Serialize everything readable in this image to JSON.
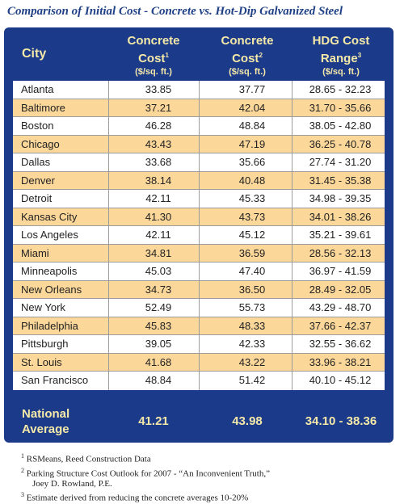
{
  "title": "Comparison of Initial Cost - Concrete vs. Hot-Dip Galvanized Steel",
  "header": {
    "city": "City",
    "col1_line1": "Concrete",
    "col1_line2": "Cost",
    "col1_sup": "1",
    "col1_unit": "($/sq. ft.)",
    "col2_line1": "Concrete",
    "col2_line2": "Cost",
    "col2_sup": "2",
    "col2_unit": "($/sq. ft.)",
    "col3_line1": "HDG Cost",
    "col3_line2": "Range",
    "col3_sup": "3",
    "col3_unit": "($/sq. ft.)"
  },
  "rows": [
    {
      "city": "Atlanta",
      "c1": "33.85",
      "c2": "37.77",
      "hdg": "28.65 - 32.23"
    },
    {
      "city": "Baltimore",
      "c1": "37.21",
      "c2": "42.04",
      "hdg": "31.70 - 35.66"
    },
    {
      "city": "Boston",
      "c1": "46.28",
      "c2": "48.84",
      "hdg": "38.05 - 42.80"
    },
    {
      "city": "Chicago",
      "c1": "43.43",
      "c2": "47.19",
      "hdg": "36.25 - 40.78"
    },
    {
      "city": "Dallas",
      "c1": "33.68",
      "c2": "35.66",
      "hdg": "27.74 - 31.20"
    },
    {
      "city": "Denver",
      "c1": "38.14",
      "c2": "40.48",
      "hdg": "31.45 - 35.38"
    },
    {
      "city": "Detroit",
      "c1": "42.11",
      "c2": "45.33",
      "hdg": "34.98 - 39.35"
    },
    {
      "city": "Kansas City",
      "c1": "41.30",
      "c2": "43.73",
      "hdg": "34.01 - 38.26"
    },
    {
      "city": "Los Angeles",
      "c1": "42.11",
      "c2": "45.12",
      "hdg": "35.21 - 39.61"
    },
    {
      "city": "Miami",
      "c1": "34.81",
      "c2": "36.59",
      "hdg": "28.56 - 32.13"
    },
    {
      "city": "Minneapolis",
      "c1": "45.03",
      "c2": "47.40",
      "hdg": "36.97 - 41.59"
    },
    {
      "city": "New Orleans",
      "c1": "34.73",
      "c2": "36.50",
      "hdg": "28.49 - 32.05"
    },
    {
      "city": "New York",
      "c1": "52.49",
      "c2": "55.73",
      "hdg": "43.29 - 48.70"
    },
    {
      "city": "Philadelphia",
      "c1": "45.83",
      "c2": "48.33",
      "hdg": "37.66 - 42.37"
    },
    {
      "city": "Pittsburgh",
      "c1": "39.05",
      "c2": "42.33",
      "hdg": "32.55 - 36.62"
    },
    {
      "city": "St. Louis",
      "c1": "41.68",
      "c2": "43.22",
      "hdg": "33.96 - 38.21"
    },
    {
      "city": "San Francisco",
      "c1": "48.84",
      "c2": "51.42",
      "hdg": "40.10 - 45.12"
    }
  ],
  "national": {
    "label_line1": "National",
    "label_line2": "Average",
    "c1": "41.21",
    "c2": "43.98",
    "hdg": "34.10 - 38.36"
  },
  "footnotes": [
    {
      "sup": "1",
      "text": "RSMeans, Reed Construction Data"
    },
    {
      "sup": "2",
      "text": "Parking Structure Cost Outlook for 2007 - “An Inconvenient Truth,”"
    },
    {
      "sup": "",
      "text": "Joey D. Rowland, P.E."
    },
    {
      "sup": "3",
      "text": "Estimate derived from reducing the concrete averages 10-20%"
    }
  ],
  "colors": {
    "header_bg": "#1c3a8a",
    "header_text": "#f4e9a8",
    "alt_row": "#fbd79a",
    "title": "#1f3f86"
  }
}
